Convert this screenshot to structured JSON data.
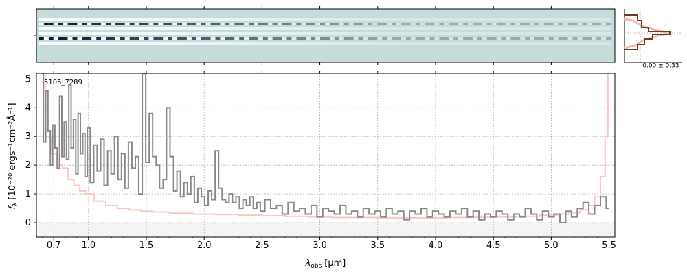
{
  "chart_data": [
    {
      "panel": "2D spectrum",
      "type": "heatmap",
      "colormap": "white-teal-navy",
      "background_color": "#c5dcdb",
      "trace_colors": [
        "#ffffff",
        "#0a1a36"
      ],
      "rows": 6,
      "xlim": [
        0.55,
        5.55
      ],
      "ylabel": "",
      "xlabel": ""
    },
    {
      "panel": "noise histogram",
      "type": "bar",
      "annotation": "-0.00 ± 0.33",
      "colors": {
        "histogram": "#6b3a2a",
        "model": "#f3b8a8"
      }
    },
    {
      "panel": "1D spectrum",
      "type": "line",
      "object_label": "5105_7289",
      "xlabel_prefix": "λ",
      "xlabel_sub": "obs",
      "xlabel_unit": "[μm]",
      "ylabel_prefix": "f",
      "ylabel_sub": "λ",
      "ylabel_unit": "[10⁻²⁰ ergs⁻¹cm⁻²Å⁻¹]",
      "xlim": [
        0.55,
        5.55
      ],
      "ylim": [
        -0.5,
        5.2
      ],
      "x_ticks": [
        "0.7",
        "1.0",
        "1.5",
        "2.0",
        "2.5",
        "3.0",
        "3.5",
        "4.0",
        "4.5",
        "5.0",
        "5.5"
      ],
      "x_tick_values": [
        0.7,
        1.0,
        1.5,
        2.0,
        2.5,
        3.0,
        3.5,
        4.0,
        4.5,
        5.0,
        5.5
      ],
      "y_ticks": [
        "0",
        "1",
        "2",
        "3",
        "4",
        "5"
      ],
      "y_tick_values": [
        0,
        1,
        2,
        3,
        4,
        5
      ],
      "grid": true,
      "colors": {
        "flux": "#888888",
        "error": "#f9c6c2"
      },
      "series": [
        {
          "x": [
            0.6,
            0.62,
            0.64,
            0.66,
            0.68,
            0.7,
            0.72,
            0.74,
            0.76,
            0.78,
            0.8,
            0.82,
            0.84,
            0.86,
            0.88,
            0.9,
            0.92,
            0.94,
            0.96,
            0.98,
            1.0,
            1.03,
            1.06,
            1.09,
            1.12,
            1.15,
            1.18,
            1.21,
            1.24,
            1.27,
            1.3,
            1.33,
            1.36,
            1.39,
            1.42,
            1.45,
            1.48,
            1.51,
            1.54,
            1.57,
            1.6,
            1.63,
            1.66,
            1.69,
            1.72,
            1.75,
            1.78,
            1.81,
            1.84,
            1.87,
            1.9,
            1.93,
            1.96,
            1.99,
            2.02,
            2.05,
            2.08,
            2.11,
            2.14,
            2.17,
            2.2,
            2.23,
            2.26,
            2.29,
            2.32,
            2.35,
            2.38,
            2.41,
            2.44,
            2.47,
            2.5,
            2.55,
            2.6,
            2.65,
            2.7,
            2.75,
            2.8,
            2.85,
            2.9,
            2.95,
            3.0,
            3.05,
            3.1,
            3.15,
            3.2,
            3.25,
            3.3,
            3.35,
            3.4,
            3.45,
            3.5,
            3.55,
            3.6,
            3.65,
            3.7,
            3.75,
            3.8,
            3.85,
            3.9,
            3.95,
            4.0,
            4.05,
            4.1,
            4.15,
            4.2,
            4.25,
            4.3,
            4.35,
            4.4,
            4.45,
            4.5,
            4.55,
            4.6,
            4.65,
            4.7,
            4.75,
            4.8,
            4.85,
            4.9,
            4.95,
            5.0,
            5.05,
            5.1,
            5.15,
            5.2,
            5.25,
            5.3,
            5.35,
            5.4,
            5.45,
            5.5
          ],
          "y": [
            5.2,
            2.8,
            4.6,
            3.2,
            2.0,
            3.4,
            2.6,
            1.9,
            4.4,
            2.3,
            3.5,
            2.2,
            4.8,
            2.6,
            3.6,
            1.7,
            3.8,
            2.4,
            3.1,
            1.6,
            3.3,
            1.4,
            2.7,
            1.8,
            2.9,
            1.3,
            2.5,
            1.7,
            3.0,
            1.5,
            2.4,
            1.2,
            2.8,
            1.9,
            2.3,
            1.0,
            5.2,
            2.1,
            3.8,
            2.3,
            2.0,
            1.2,
            1.5,
            4.0,
            2.3,
            1.1,
            1.8,
            0.9,
            1.4,
            1.0,
            1.6,
            0.7,
            1.2,
            0.9,
            0.6,
            1.1,
            0.8,
            2.5,
            1.2,
            0.8,
            0.7,
            1.0,
            0.7,
            0.9,
            0.5,
            0.8,
            0.6,
            0.9,
            0.5,
            0.7,
            0.4,
            0.8,
            0.5,
            0.6,
            0.3,
            0.7,
            0.4,
            0.5,
            0.3,
            0.6,
            0.2,
            0.5,
            0.4,
            0.3,
            0.6,
            0.3,
            0.4,
            0.2,
            0.5,
            0.3,
            0.4,
            0.2,
            0.5,
            0.3,
            0.4,
            0.1,
            0.4,
            0.3,
            0.5,
            0.2,
            0.4,
            0.3,
            0.2,
            0.4,
            0.3,
            0.5,
            0.2,
            0.4,
            0.1,
            0.3,
            0.2,
            0.4,
            0.3,
            0.1,
            0.3,
            0.2,
            0.5,
            0.3,
            0.1,
            0.4,
            0.2,
            0.3,
            0.0,
            0.4,
            0.2,
            0.5,
            0.7,
            0.3,
            0.6,
            0.9,
            0.5
          ]
        },
        {
          "x": [
            0.6,
            0.65,
            0.7,
            0.75,
            0.8,
            0.85,
            0.9,
            0.95,
            1.0,
            1.1,
            1.2,
            1.3,
            1.4,
            1.5,
            1.6,
            1.8,
            2.0,
            2.2,
            2.4,
            2.6,
            2.8,
            3.0,
            3.2,
            3.4,
            3.6,
            3.8,
            4.0,
            4.2,
            4.4,
            4.6,
            4.8,
            5.0,
            5.1,
            5.2,
            5.3,
            5.35,
            5.4,
            5.45,
            5.48,
            5.5
          ],
          "y": [
            5.2,
            3.0,
            2.4,
            2.0,
            1.9,
            1.5,
            1.3,
            1.1,
            1.0,
            0.75,
            0.6,
            0.5,
            0.45,
            0.4,
            0.37,
            0.33,
            0.3,
            0.28,
            0.26,
            0.24,
            0.22,
            0.2,
            0.18,
            0.18,
            0.17,
            0.17,
            0.17,
            0.18,
            0.19,
            0.2,
            0.22,
            0.26,
            0.3,
            0.35,
            0.45,
            0.6,
            0.9,
            1.6,
            3.0,
            5.2
          ]
        }
      ]
    }
  ]
}
